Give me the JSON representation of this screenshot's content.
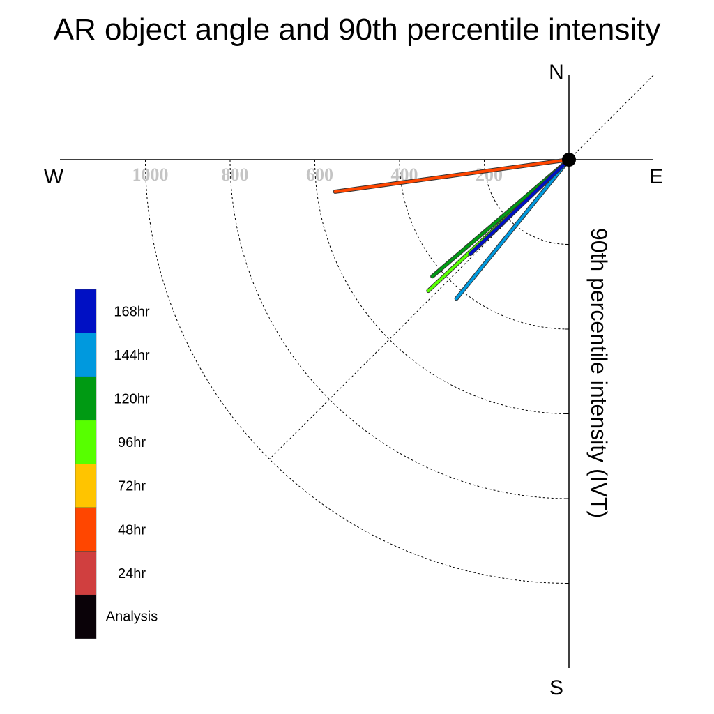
{
  "chart_data": {
    "type": "polar-vector",
    "title": "AR object angle and 90th percentile intensity",
    "ylabel": "90th percentile intensity (IVT)",
    "compass": {
      "north": "N",
      "south": "S",
      "east": "E",
      "west": "W"
    },
    "radial_ticks": [
      200,
      400,
      600,
      800,
      1000
    ],
    "radial_tick_labels": [
      "200",
      "400",
      "600",
      "800",
      "1000"
    ],
    "rmax": 1200,
    "grid_diagonals": true,
    "legend_placement": "bottom-left",
    "legend": [
      {
        "label": "168hr",
        "color": "#0010c4"
      },
      {
        "label": "144hr",
        "color": "#0099de"
      },
      {
        "label": "120hr",
        "color": "#009a13"
      },
      {
        "label": "96hr",
        "color": "#57ff00"
      },
      {
        "label": "72hr",
        "color": "#ffc400"
      },
      {
        "label": "48hr",
        "color": "#ff4600"
      },
      {
        "label": "24hr",
        "color": "#d03f3f"
      },
      {
        "label": "Analysis",
        "color": "#0a0208"
      }
    ],
    "series": [
      {
        "name": "48hr",
        "color": "#ff4600",
        "angle_deg_cw_from_west": 7.8,
        "intensity": 557
      },
      {
        "name": "96hr",
        "color": "#57ff00",
        "angle_deg_cw_from_west": 43.0,
        "intensity": 454
      },
      {
        "name": "120hr",
        "color": "#009a13",
        "angle_deg_cw_from_west": 40.5,
        "intensity": 424
      },
      {
        "name": "144hr",
        "color": "#0099de",
        "angle_deg_cw_from_west": 51.0,
        "intensity": 422
      },
      {
        "name": "168hr",
        "color": "#0010c4",
        "angle_deg_cw_from_west": 43.7,
        "intensity": 322
      }
    ]
  }
}
